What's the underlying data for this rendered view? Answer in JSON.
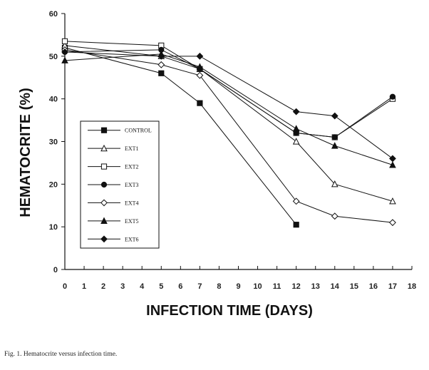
{
  "chart_data": {
    "type": "line",
    "title": "",
    "xlabel": "INFECTION TIME (DAYS)",
    "ylabel": "HEMATOCRITE (%)",
    "xlim": [
      0,
      18
    ],
    "ylim": [
      0,
      60
    ],
    "x_ticks": [
      0,
      1,
      2,
      3,
      4,
      5,
      6,
      7,
      8,
      9,
      10,
      11,
      12,
      13,
      14,
      15,
      16,
      17,
      18
    ],
    "y_ticks": [
      0,
      10,
      20,
      30,
      40,
      50,
      60
    ],
    "legend_position": "center-left",
    "grid": false,
    "series": [
      {
        "name": "CONTROL",
        "marker": "square-filled",
        "x": [
          0,
          5,
          7,
          12
        ],
        "y": [
          52,
          46,
          39,
          10.5
        ]
      },
      {
        "name": "EXT1",
        "marker": "triangle-open",
        "x": [
          0,
          5,
          7,
          12,
          14,
          17
        ],
        "y": [
          52.5,
          50,
          47,
          30,
          20,
          16
        ]
      },
      {
        "name": "EXT2",
        "marker": "square-open",
        "x": [
          0,
          5,
          7,
          12,
          14,
          17
        ],
        "y": [
          53.5,
          52.5,
          47,
          32,
          31,
          40
        ]
      },
      {
        "name": "EXT3",
        "marker": "circle-filled",
        "x": [
          0,
          5,
          7,
          12,
          14,
          17
        ],
        "y": [
          51,
          51.5,
          47,
          32,
          31,
          40.5
        ]
      },
      {
        "name": "EXT4",
        "marker": "diamond-open",
        "x": [
          0,
          5,
          7,
          12,
          14,
          17
        ],
        "y": [
          51.5,
          48,
          45.5,
          16,
          12.5,
          11
        ]
      },
      {
        "name": "EXT5",
        "marker": "triangle-filled",
        "x": [
          0,
          5,
          7,
          12,
          14,
          17
        ],
        "y": [
          49,
          50.5,
          47.5,
          33,
          29,
          24.5
        ]
      },
      {
        "name": "EXT6",
        "marker": "diamond-filled",
        "x": [
          0,
          5,
          7,
          12,
          14,
          17
        ],
        "y": [
          51,
          50,
          50,
          37,
          36,
          26
        ]
      }
    ]
  },
  "caption": "Fig. 1. Hematocrite versus infection time."
}
